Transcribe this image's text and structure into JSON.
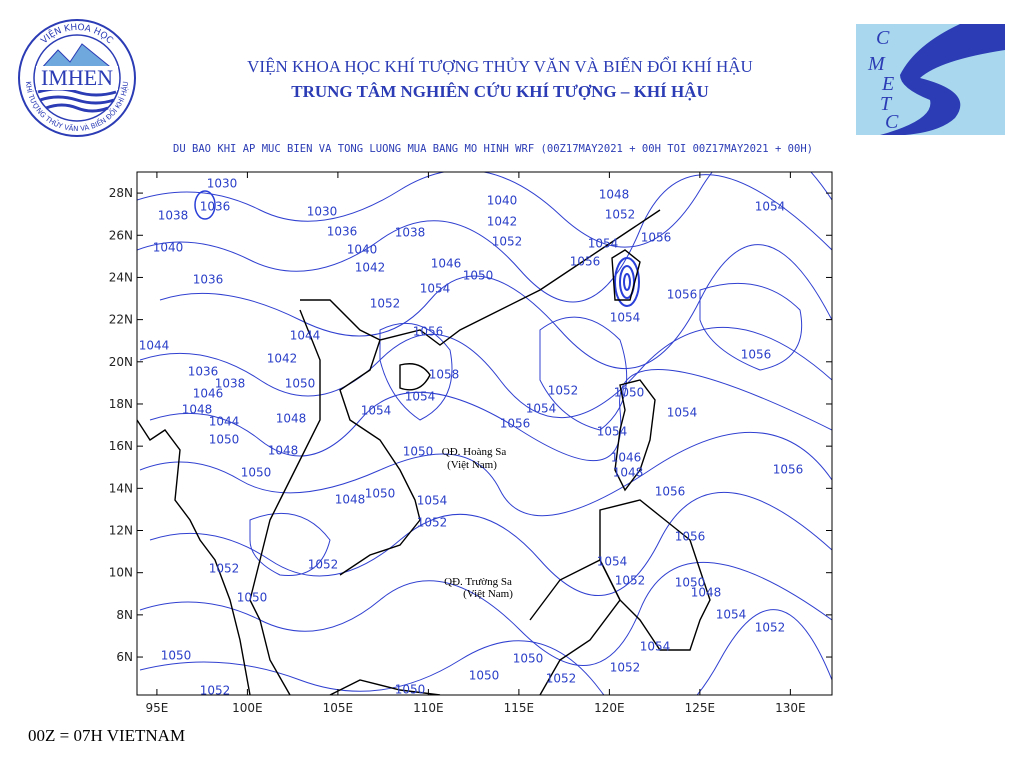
{
  "header": {
    "institute": "VIỆN KHOA HỌC KHÍ TƯỢNG THỦY VĂN VÀ BIẾN ĐỔI KHÍ HẬU",
    "center": "TRUNG TÂM NGHIÊN CỨU KHÍ TƯỢNG – KHÍ HẬU",
    "logo_left": "IMHEN",
    "logo_left_ring_top": "VIỆN KHOA HỌC",
    "logo_left_ring_bottom": "KHÍ TƯỢNG THỦY VĂN VÀ BIẾN ĐỔI KHÍ HẬU",
    "logo_right": [
      "C",
      "M",
      "E",
      "T",
      "C"
    ]
  },
  "map": {
    "title": "DU BAO KHI AP MUC BIEN VA TONG LUONG MUA BANG MO HINH WRF (00Z17MAY2021 + 00H TOI 00Z17MAY2021 + 00H)",
    "xlim": [
      93.9,
      132.3
    ],
    "ylim": [
      4.2,
      29.0
    ],
    "xticks": [
      {
        "value": 95,
        "label": "95E"
      },
      {
        "value": 100,
        "label": "100E"
      },
      {
        "value": 105,
        "label": "105E"
      },
      {
        "value": 110,
        "label": "110E"
      },
      {
        "value": 115,
        "label": "115E"
      },
      {
        "value": 120,
        "label": "120E"
      },
      {
        "value": 125,
        "label": "125E"
      },
      {
        "value": 130,
        "label": "130E"
      }
    ],
    "yticks": [
      {
        "value": 6,
        "label": "6N"
      },
      {
        "value": 8,
        "label": "8N"
      },
      {
        "value": 10,
        "label": "10N"
      },
      {
        "value": 12,
        "label": "12N"
      },
      {
        "value": 14,
        "label": "14N"
      },
      {
        "value": 16,
        "label": "16N"
      },
      {
        "value": 18,
        "label": "18N"
      },
      {
        "value": 20,
        "label": "20N"
      },
      {
        "value": 22,
        "label": "22N"
      },
      {
        "value": 24,
        "label": "24N"
      },
      {
        "value": 26,
        "label": "26N"
      },
      {
        "value": 28,
        "label": "28N"
      }
    ],
    "islands": [
      [
        "QĐ. Hoàng Sa",
        "(Việt Nam)"
      ],
      [
        "QĐ. Trường Sa",
        "(Việt Nam)"
      ]
    ],
    "contour_labels": [
      "1030",
      "1036",
      "1038",
      "1030",
      "1036",
      "1038",
      "1040",
      "1042",
      "1052",
      "1048",
      "1052",
      "1054",
      "1056",
      "1054",
      "1040",
      "1036",
      "1040",
      "1042",
      "1046",
      "1050",
      "1054",
      "1052",
      "1056",
      "1056",
      "1054",
      "1044",
      "1044",
      "1042",
      "1056",
      "1056",
      "1036",
      "1038",
      "1050",
      "1058",
      "1054",
      "1052",
      "1050",
      "1046",
      "1048",
      "1054",
      "1054",
      "1054",
      "1044",
      "1048",
      "1056",
      "1054",
      "1050",
      "1048",
      "1050",
      "1046",
      "1048",
      "1056",
      "1050",
      "1056",
      "1048",
      "1050",
      "1054",
      "1052",
      "1056",
      "1052",
      "1054",
      "1052",
      "1052",
      "1050",
      "1048",
      "1050",
      "1054",
      "1052",
      "1054",
      "1050",
      "1050",
      "1052",
      "1050",
      "1052",
      "1052",
      "1050"
    ]
  },
  "footer": "00Z = 07H VIETNAM"
}
